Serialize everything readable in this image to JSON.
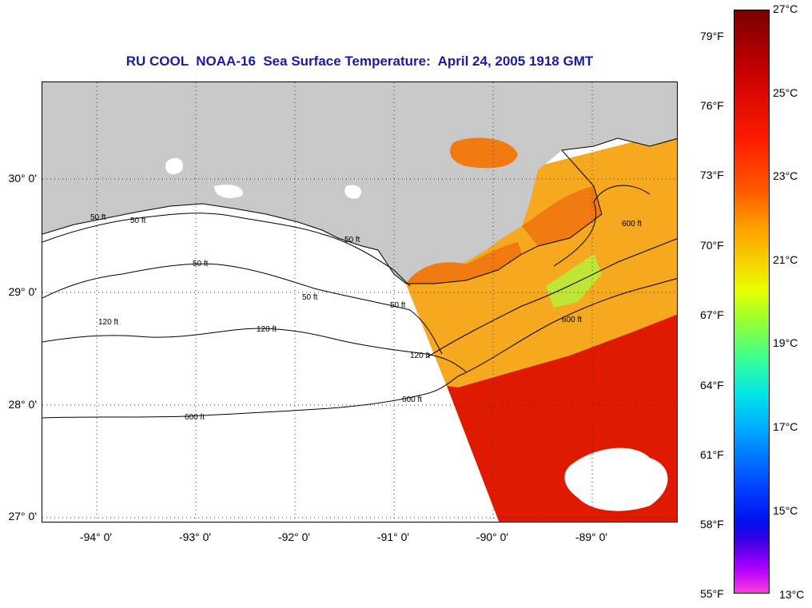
{
  "title": "RU COOL  NOAA-16  Sea Surface Temperature:  April 24, 2005 1918 GMT",
  "map": {
    "lat_labels": [
      "30° 0'",
      "29° 0'",
      "28° 0'",
      "27° 0'"
    ],
    "lon_labels": [
      "-94° 0'",
      "-93° 0'",
      "-92° 0'",
      "-91° 0'",
      "-90° 0'",
      "-89° 0'"
    ],
    "contour_labels": [
      "50 ft",
      "50 ft",
      "50 ft",
      "50 ft",
      "50 ft",
      "50 ft",
      "120 ft",
      "120 ft",
      "120 ft",
      "600 ft",
      "600 ft",
      "600 ft",
      "600 ft"
    ],
    "colors": {
      "land": "#c8c8c8",
      "no_data": "#ffffff",
      "warm": "#e01a00",
      "mid": "#f6a81e",
      "coastal": "#f07a10",
      "cool": "#a8ff40",
      "contour": "#000000"
    }
  },
  "colorbar": {
    "fahrenheit": [
      "79°F",
      "76°F",
      "73°F",
      "70°F",
      "67°F",
      "64°F",
      "61°F",
      "58°F",
      "55°F"
    ],
    "celsius": [
      "27°C",
      "25°C",
      "23°C",
      "21°C",
      "19°C",
      "17°C",
      "15°C",
      "13°C"
    ]
  }
}
